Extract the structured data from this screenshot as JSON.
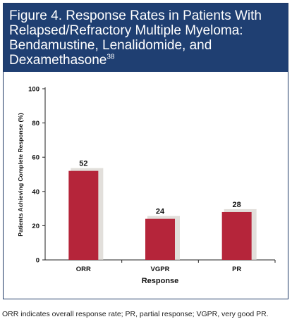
{
  "figure": {
    "title_main": "Figure 4. Response Rates in Patients With Relapsed/Refractory Multiple Myeloma: Bendamustine, Lenalidomide, and Dexamethasone",
    "title_ref": "38",
    "footnote": "ORR indicates overall response rate; PR, partial response; VGPR, very good PR."
  },
  "colors": {
    "header_bg": "#1f3f72",
    "bar": "#b5253a",
    "shadow": "#d6d2cc"
  },
  "chart_data": {
    "type": "bar",
    "categories": [
      "ORR",
      "VGPR",
      "PR"
    ],
    "values": [
      52,
      24,
      28
    ],
    "data_labels": [
      "52",
      "24",
      "28"
    ],
    "xlabel": "Response",
    "ylabel": "Patients Achieving Complete Response (%)",
    "ylim": [
      0,
      100
    ],
    "yticks": [
      "0",
      "20",
      "40",
      "60",
      "80",
      "100"
    ],
    "grid": false,
    "legend": "none"
  }
}
